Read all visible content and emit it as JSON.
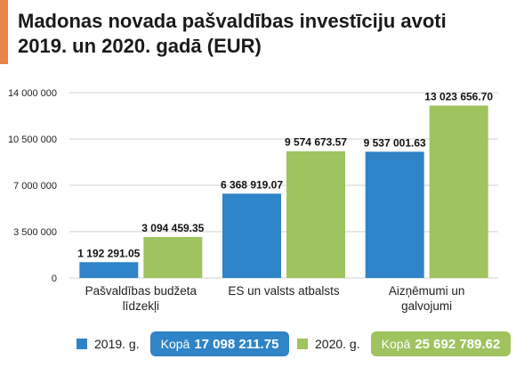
{
  "header": {
    "title_line1": "Madonas novada pašvaldības investīciju avoti",
    "title_line2": "2019. un 2020. gadā (EUR)"
  },
  "colors": {
    "accent": "#e8834a",
    "series_2019": "#2f83c7",
    "series_2020": "#9ec35f",
    "grid": "#d0d0d0"
  },
  "chart_data": {
    "type": "bar",
    "title": "Madonas novada pašvaldības investīciju avoti 2019. un 2020. gadā (EUR)",
    "categories": [
      [
        "Pašvaldības budžeta",
        "līdzekļi"
      ],
      [
        "ES un valsts atbalsts"
      ],
      [
        "Aizņēmumi un",
        "galvojumi"
      ]
    ],
    "series": [
      {
        "name": "2019. g.",
        "values": [
          1192291.05,
          6368919.07,
          9537001.63
        ],
        "labels": [
          "1 192 291.05",
          "6 368 919.07",
          "9 537 001.63"
        ]
      },
      {
        "name": "2020. g.",
        "values": [
          3094459.35,
          9574673.57,
          13023656.7
        ],
        "labels": [
          "3 094 459.35",
          "9 574 673.57",
          "13 023 656.70"
        ]
      }
    ],
    "ylim": [
      0,
      14000000
    ],
    "yticks": [
      0,
      3500000,
      7000000,
      10500000,
      14000000
    ],
    "ytick_labels": [
      "0",
      "3 500 000",
      "7 000 000",
      "10 500 000",
      "14 000 000"
    ],
    "grid": true,
    "legend": "bottom"
  },
  "legend": {
    "items": [
      {
        "label": "2019. g.",
        "total_label": "Kopā",
        "total_value": "17 098 211.75"
      },
      {
        "label": "2020. g.",
        "total_label": "Kopā",
        "total_value": "25 692 789.62"
      }
    ]
  }
}
